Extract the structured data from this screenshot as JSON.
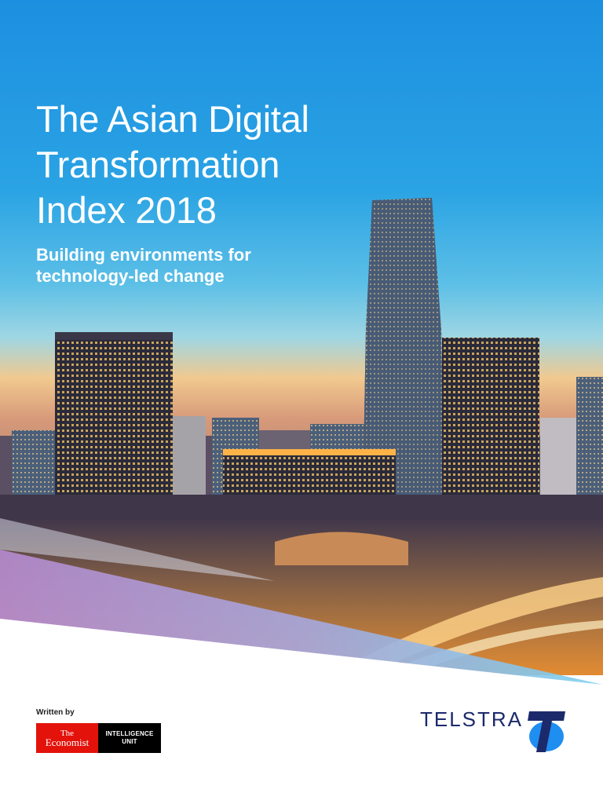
{
  "title_lines": [
    "The Asian Digital",
    "Transformation",
    "Index 2018"
  ],
  "subtitle_lines": [
    "Building environments for",
    "technology-led change"
  ],
  "written_by": "Written by",
  "economist_logo": {
    "the": "The",
    "economist": "Economist",
    "intelligence": "INTELLIGENCE",
    "unit": "UNIT"
  },
  "telstra_logo": "TELSTRA",
  "colors": {
    "sky_top": "#1d8fe0",
    "sky_bottom": "#f3b879",
    "telstra_blue": "#1c2a6b",
    "economist_red": "#e3120b"
  }
}
